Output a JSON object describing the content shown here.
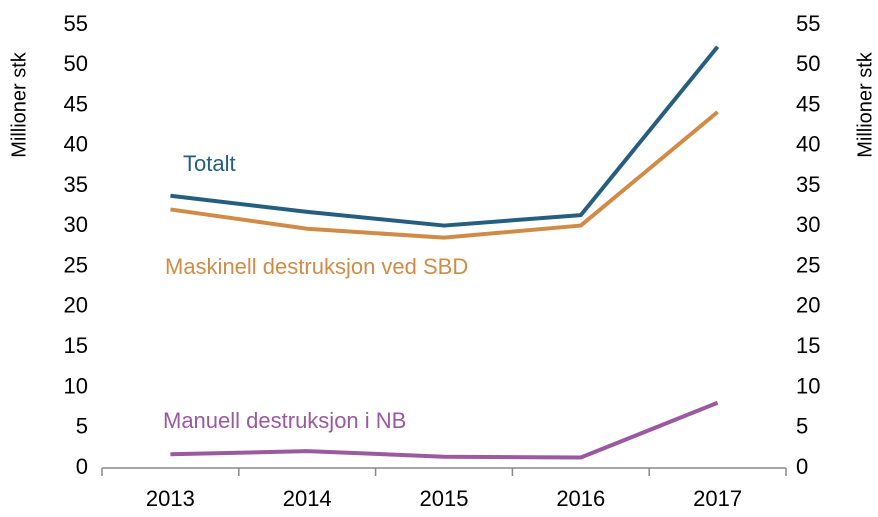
{
  "chart_data": {
    "type": "line",
    "categories": [
      "2013",
      "2014",
      "2015",
      "2016",
      "2017"
    ],
    "series": [
      {
        "name": "Totalt",
        "color": "#255e7e",
        "values": [
          33.8,
          31.8,
          30.1,
          31.4,
          52.3
        ]
      },
      {
        "name": "Maskinell destruksjon ved SBD",
        "color": "#d08c47",
        "values": [
          32.1,
          29.7,
          28.6,
          30.1,
          44.2
        ]
      },
      {
        "name": "Manuell destruksjon i NB",
        "color": "#9b59a0",
        "values": [
          1.7,
          2.1,
          1.4,
          1.3,
          8.1
        ]
      }
    ],
    "ylabel": "Millioner stk",
    "y2label": "Millioner stk",
    "ylim": [
      0,
      55
    ],
    "yticks": [
      0,
      5,
      10,
      15,
      20,
      25,
      30,
      35,
      40,
      45,
      50,
      55
    ],
    "y2lim": [
      0,
      55
    ],
    "y2ticks": [
      0,
      5,
      10,
      15,
      20,
      25,
      30,
      35,
      40,
      45,
      50,
      55
    ]
  }
}
